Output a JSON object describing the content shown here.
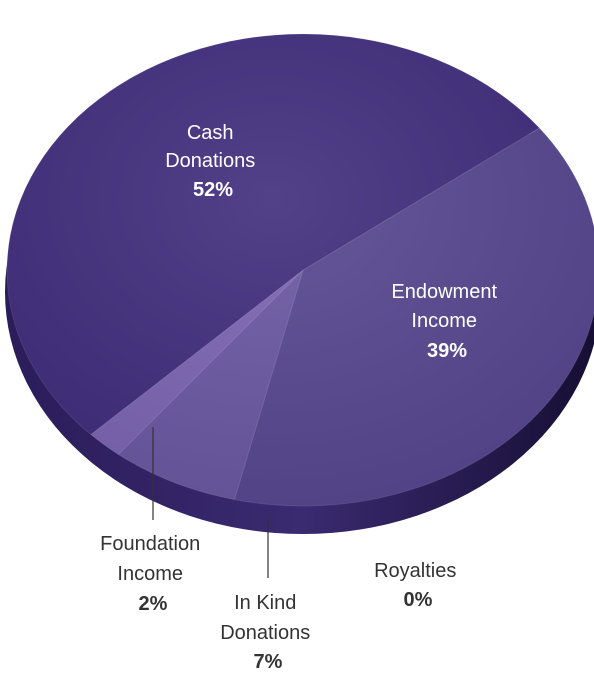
{
  "chart_data": {
    "type": "pie",
    "title": "",
    "slices": [
      {
        "name": "Cash Donations",
        "label_lines": [
          "Cash",
          "Donations"
        ],
        "value": 52,
        "value_label": "52%"
      },
      {
        "name": "Endowment Income",
        "label_lines": [
          "Endowment",
          "Income"
        ],
        "value": 39,
        "value_label": "39%"
      },
      {
        "name": "Royalties",
        "label_lines": [
          "Royalties"
        ],
        "value": 0,
        "value_label": "0%"
      },
      {
        "name": "In Kind Donations",
        "label_lines": [
          "In Kind",
          "Donations"
        ],
        "value": 7,
        "value_label": "7%"
      },
      {
        "name": "Foundation Income",
        "label_lines": [
          "Foundation",
          "Income"
        ],
        "value": 2,
        "value_label": "2%"
      }
    ],
    "legend": "none",
    "style": "3d-pie"
  },
  "colors": {
    "cash_donations": "#3f2c7c",
    "endowment_income": "#56468f",
    "in_kind_donations": "#6a57a1",
    "foundation_income": "#7b64b2",
    "side_shadow": "#2b1c5a",
    "inside_label_text": "#ffffff",
    "outside_label_text": "#333333",
    "leader_line": "#333333"
  }
}
